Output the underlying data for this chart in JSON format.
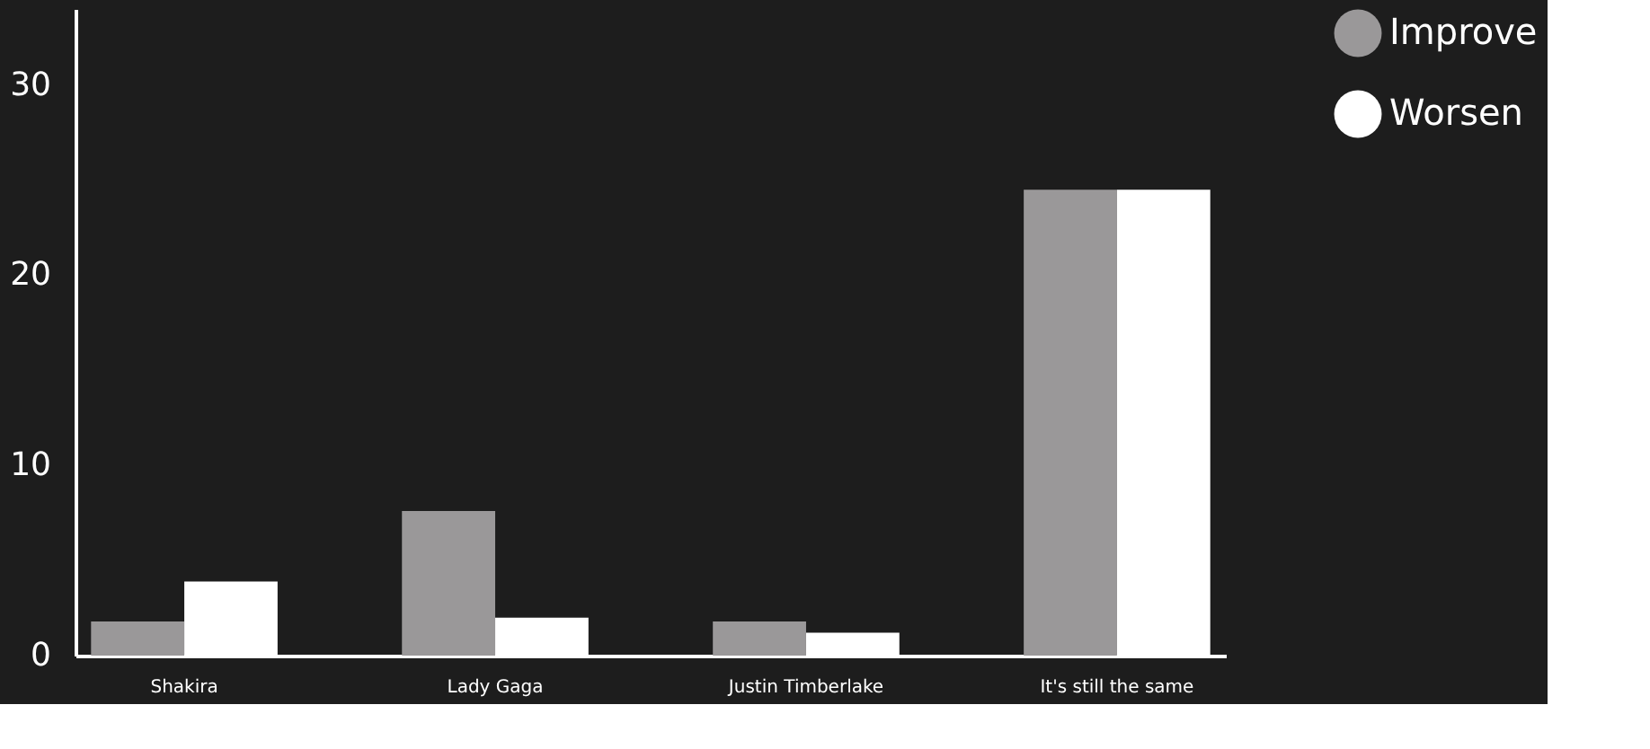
{
  "chart_data": {
    "type": "bar",
    "categories": [
      "Shakira",
      "Lady Gaga",
      "Justin Timberlake",
      "It's still the same"
    ],
    "series": [
      {
        "name": "Improve",
        "color": "#9a9899",
        "values": [
          1.8,
          7.6,
          1.8,
          24.5
        ]
      },
      {
        "name": "Worsen",
        "color": "#ffffff",
        "values": [
          3.9,
          2,
          1.2,
          24.5
        ]
      }
    ],
    "ylim": [
      0,
      34
    ],
    "yticks": [
      0,
      10,
      20,
      30
    ],
    "grid": false,
    "legend": "right"
  }
}
